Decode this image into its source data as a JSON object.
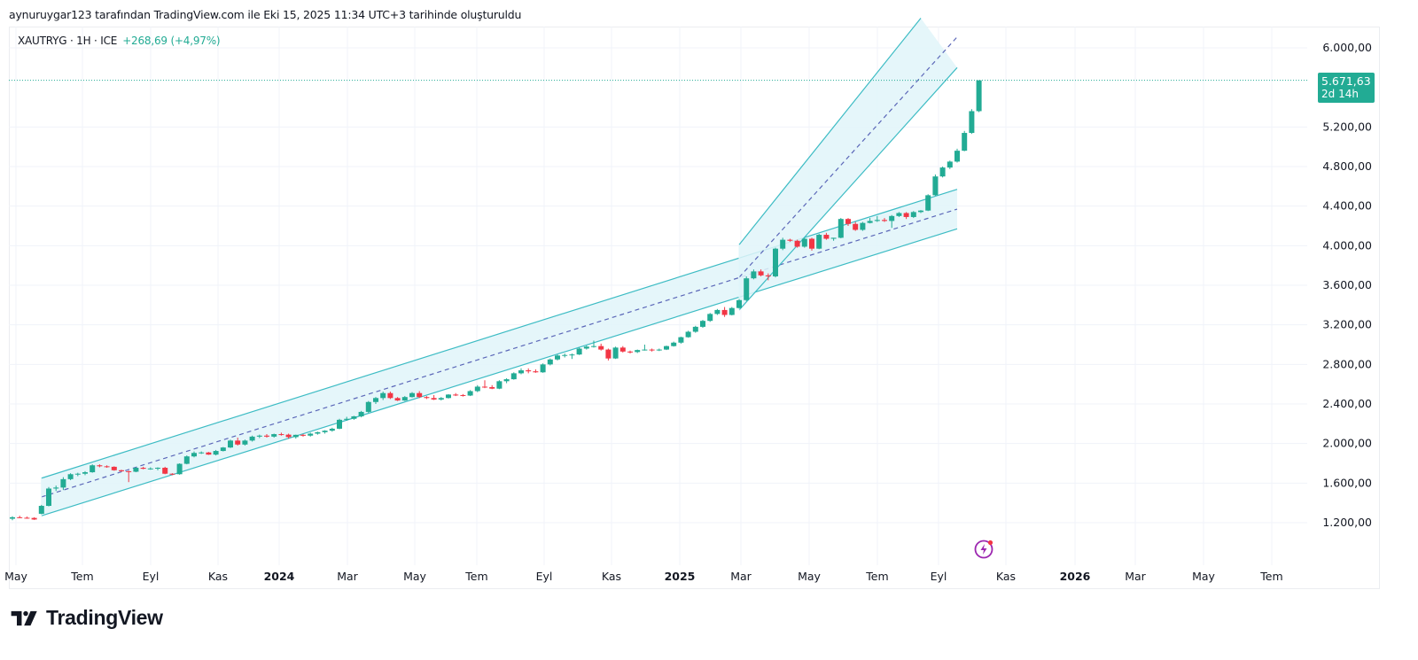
{
  "caption": "aynuruygar123 tarafından TradingView.com ile Eki 15, 2025 11:34 UTC+3 tarihinde oluşturuldu",
  "legend": {
    "symbol": "XAUTRYG · 1H · ICE",
    "change": "+268,69 (+4,97%)"
  },
  "price_tag": {
    "price": "5.671,63",
    "countdown": "2d 14h"
  },
  "branding": {
    "logo_text": "TradingView"
  },
  "colors": {
    "up": "#22ab94",
    "down": "#f23645",
    "channel_line": "#3dbcc4",
    "channel_fill": "#e0f5f9",
    "median_line": "#5b67b8",
    "grid": "#f0f3fa",
    "events_icon": "#9c27b0"
  },
  "chart_data": {
    "type": "candlestick",
    "title": "XAUTRYG · 1H · ICE",
    "interval": "weekly-like candles",
    "ylim": [
      800,
      6300
    ],
    "yticks": [
      1200,
      1600,
      2000,
      2400,
      2800,
      3200,
      3600,
      4000,
      4400,
      4800,
      5200,
      6000
    ],
    "ytick_labels": [
      "1.200,00",
      "1.600,00",
      "2.000,00",
      "2.400,00",
      "2.800,00",
      "3.200,00",
      "3.600,00",
      "4.000,00",
      "4.400,00",
      "4.800,00",
      "5.200,00",
      "6.000,00"
    ],
    "xticks": [
      {
        "label": "May",
        "bold": false
      },
      {
        "label": "Tem",
        "bold": false
      },
      {
        "label": "Eyl",
        "bold": false
      },
      {
        "label": "Kas",
        "bold": false
      },
      {
        "label": "2024",
        "bold": true
      },
      {
        "label": "Mar",
        "bold": false
      },
      {
        "label": "May",
        "bold": false
      },
      {
        "label": "Tem",
        "bold": false
      },
      {
        "label": "Eyl",
        "bold": false
      },
      {
        "label": "Kas",
        "bold": false
      },
      {
        "label": "2025",
        "bold": true
      },
      {
        "label": "Mar",
        "bold": false
      },
      {
        "label": "May",
        "bold": false
      },
      {
        "label": "Tem",
        "bold": false
      },
      {
        "label": "Eyl",
        "bold": false
      },
      {
        "label": "Kas",
        "bold": false
      },
      {
        "label": "2026",
        "bold": true
      },
      {
        "label": "Mar",
        "bold": false
      },
      {
        "label": "May",
        "bold": false
      },
      {
        "label": "Tem",
        "bold": false
      }
    ],
    "last_price": 5671.63,
    "candles": [
      [
        1240,
        1265,
        1225,
        1255
      ],
      [
        1255,
        1270,
        1245,
        1250
      ],
      [
        1250,
        1262,
        1240,
        1248
      ],
      [
        1248,
        1255,
        1228,
        1232
      ],
      [
        1290,
        1380,
        1285,
        1370
      ],
      [
        1370,
        1560,
        1365,
        1545
      ],
      [
        1545,
        1575,
        1520,
        1555
      ],
      [
        1555,
        1660,
        1530,
        1640
      ],
      [
        1640,
        1700,
        1630,
        1690
      ],
      [
        1690,
        1705,
        1670,
        1695
      ],
      [
        1695,
        1720,
        1680,
        1710
      ],
      [
        1710,
        1790,
        1705,
        1780
      ],
      [
        1780,
        1790,
        1760,
        1770
      ],
      [
        1770,
        1780,
        1755,
        1765
      ],
      [
        1765,
        1770,
        1725,
        1730
      ],
      [
        1730,
        1735,
        1715,
        1720
      ],
      [
        1720,
        1725,
        1610,
        1715
      ],
      [
        1715,
        1760,
        1710,
        1755
      ],
      [
        1755,
        1765,
        1740,
        1745
      ],
      [
        1745,
        1760,
        1735,
        1748
      ],
      [
        1748,
        1760,
        1730,
        1755
      ],
      [
        1755,
        1765,
        1690,
        1695
      ],
      [
        1695,
        1700,
        1680,
        1690
      ],
      [
        1690,
        1800,
        1685,
        1795
      ],
      [
        1795,
        1880,
        1790,
        1870
      ],
      [
        1870,
        1920,
        1860,
        1905
      ],
      [
        1905,
        1920,
        1895,
        1910
      ],
      [
        1910,
        1915,
        1885,
        1888
      ],
      [
        1888,
        1935,
        1880,
        1925
      ],
      [
        1925,
        1965,
        1920,
        1960
      ],
      [
        1960,
        2040,
        1955,
        2030
      ],
      [
        2030,
        2060,
        1980,
        1990
      ],
      [
        1990,
        2040,
        1980,
        2030
      ],
      [
        2030,
        2080,
        2020,
        2070
      ],
      [
        2070,
        2090,
        2055,
        2080
      ],
      [
        2080,
        2095,
        2060,
        2070
      ],
      [
        2070,
        2100,
        2060,
        2095
      ],
      [
        2095,
        2110,
        2080,
        2090
      ],
      [
        2090,
        2100,
        2050,
        2065
      ],
      [
        2065,
        2090,
        2050,
        2088
      ],
      [
        2088,
        2095,
        2070,
        2080
      ],
      [
        2080,
        2110,
        2070,
        2100
      ],
      [
        2100,
        2120,
        2090,
        2115
      ],
      [
        2115,
        2135,
        2100,
        2130
      ],
      [
        2130,
        2160,
        2120,
        2150
      ],
      [
        2150,
        2250,
        2145,
        2240
      ],
      [
        2240,
        2270,
        2230,
        2250
      ],
      [
        2250,
        2280,
        2240,
        2275
      ],
      [
        2275,
        2330,
        2265,
        2320
      ],
      [
        2320,
        2430,
        2310,
        2420
      ],
      [
        2420,
        2470,
        2400,
        2460
      ],
      [
        2460,
        2525,
        2440,
        2510
      ],
      [
        2510,
        2525,
        2450,
        2460
      ],
      [
        2460,
        2470,
        2430,
        2435
      ],
      [
        2435,
        2480,
        2430,
        2470
      ],
      [
        2470,
        2520,
        2465,
        2510
      ],
      [
        2510,
        2530,
        2460,
        2470
      ],
      [
        2470,
        2480,
        2450,
        2460
      ],
      [
        2460,
        2490,
        2440,
        2445
      ],
      [
        2445,
        2470,
        2435,
        2460
      ],
      [
        2460,
        2500,
        2455,
        2495
      ],
      [
        2495,
        2510,
        2480,
        2490
      ],
      [
        2490,
        2500,
        2475,
        2485
      ],
      [
        2485,
        2540,
        2480,
        2530
      ],
      [
        2530,
        2590,
        2520,
        2575
      ],
      [
        2575,
        2640,
        2560,
        2570
      ],
      [
        2570,
        2590,
        2550,
        2555
      ],
      [
        2555,
        2640,
        2550,
        2630
      ],
      [
        2630,
        2660,
        2610,
        2650
      ],
      [
        2650,
        2720,
        2645,
        2710
      ],
      [
        2710,
        2760,
        2700,
        2740
      ],
      [
        2740,
        2760,
        2710,
        2730
      ],
      [
        2730,
        2750,
        2715,
        2720
      ],
      [
        2720,
        2810,
        2715,
        2800
      ],
      [
        2800,
        2860,
        2790,
        2850
      ],
      [
        2850,
        2900,
        2840,
        2890
      ],
      [
        2890,
        2910,
        2870,
        2895
      ],
      [
        2895,
        2910,
        2855,
        2900
      ],
      [
        2900,
        2970,
        2895,
        2960
      ],
      [
        2960,
        2990,
        2950,
        2980
      ],
      [
        2980,
        3040,
        2970,
        2985
      ],
      [
        2985,
        3010,
        2940,
        2950
      ],
      [
        2950,
        2960,
        2840,
        2860
      ],
      [
        2860,
        2980,
        2855,
        2970
      ],
      [
        2970,
        2985,
        2920,
        2930
      ],
      [
        2930,
        2940,
        2910,
        2925
      ],
      [
        2925,
        2950,
        2915,
        2945
      ],
      [
        2945,
        3000,
        2940,
        2950
      ],
      [
        2950,
        2960,
        2930,
        2945
      ],
      [
        2945,
        2960,
        2935,
        2950
      ],
      [
        2950,
        2990,
        2945,
        2985
      ],
      [
        2985,
        3030,
        2980,
        3020
      ],
      [
        3020,
        3080,
        3010,
        3075
      ],
      [
        3075,
        3140,
        3070,
        3130
      ],
      [
        3130,
        3190,
        3120,
        3180
      ],
      [
        3180,
        3250,
        3170,
        3240
      ],
      [
        3240,
        3320,
        3230,
        3310
      ],
      [
        3310,
        3360,
        3300,
        3350
      ],
      [
        3350,
        3380,
        3280,
        3300
      ],
      [
        3300,
        3380,
        3295,
        3370
      ],
      [
        3370,
        3460,
        3365,
        3450
      ],
      [
        3450,
        3690,
        3440,
        3670
      ],
      [
        3670,
        3760,
        3660,
        3740
      ],
      [
        3740,
        3760,
        3690,
        3700
      ],
      [
        3700,
        3720,
        3650,
        3690
      ],
      [
        3690,
        3980,
        3680,
        3970
      ],
      [
        3970,
        4080,
        3955,
        4060
      ],
      [
        4060,
        4070,
        4040,
        4050
      ],
      [
        4050,
        4060,
        3980,
        3990
      ],
      [
        3990,
        4080,
        3980,
        4070
      ],
      [
        4070,
        4080,
        3950,
        3970
      ],
      [
        3970,
        4120,
        3965,
        4110
      ],
      [
        4110,
        4130,
        4060,
        4070
      ],
      [
        4070,
        4080,
        4050,
        4080
      ],
      [
        4080,
        4280,
        4075,
        4270
      ],
      [
        4270,
        4280,
        4200,
        4220
      ],
      [
        4220,
        4240,
        4150,
        4160
      ],
      [
        4160,
        4240,
        4150,
        4230
      ],
      [
        4230,
        4280,
        4225,
        4250
      ],
      [
        4250,
        4300,
        4240,
        4260
      ],
      [
        4260,
        4280,
        4240,
        4250
      ],
      [
        4250,
        4310,
        4180,
        4300
      ],
      [
        4300,
        4340,
        4290,
        4330
      ],
      [
        4330,
        4340,
        4270,
        4290
      ],
      [
        4290,
        4350,
        4280,
        4340
      ],
      [
        4340,
        4360,
        4330,
        4355
      ],
      [
        4355,
        4520,
        4350,
        4510
      ],
      [
        4510,
        4720,
        4505,
        4700
      ],
      [
        4700,
        4800,
        4690,
        4790
      ],
      [
        4790,
        4860,
        4775,
        4850
      ],
      [
        4850,
        4980,
        4840,
        4960
      ],
      [
        4960,
        5160,
        4955,
        5140
      ],
      [
        5140,
        5380,
        5130,
        5360
      ],
      [
        5360,
        5671.63,
        5350,
        5671.63
      ]
    ],
    "channels": [
      {
        "name": "channel-1",
        "upper": [
          [
            4,
            1650
          ],
          [
            95,
            3360
          ]
        ],
        "lower": [
          [
            4,
            1270
          ],
          [
            130,
            4170
          ]
        ],
        "median": [
          [
            4,
            1460
          ],
          [
            130,
            4370
          ]
        ],
        "upper_end": [
          130,
          4570
        ]
      },
      {
        "name": "channel-2",
        "upper": [
          [
            100,
            4010
          ],
          [
            125,
            6300
          ]
        ],
        "lower": [
          [
            100,
            3350
          ],
          [
            130,
            5800
          ]
        ],
        "median": [
          [
            100,
            3680
          ],
          [
            130,
            6110
          ]
        ]
      }
    ]
  }
}
